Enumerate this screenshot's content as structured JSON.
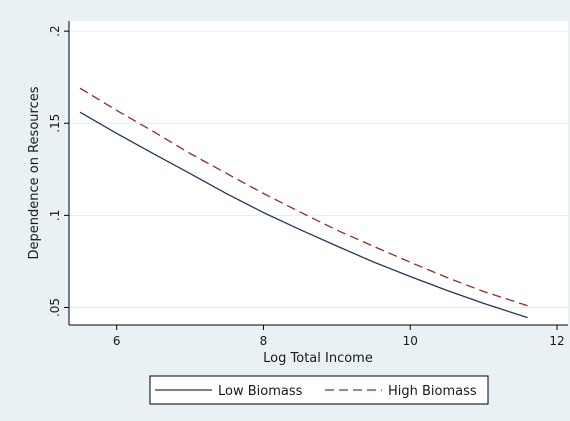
{
  "chart_data": {
    "type": "line",
    "title": "",
    "xlabel": "Log Total Income",
    "ylabel": "Dependence on Resources",
    "xlim": [
      5.35,
      12.15
    ],
    "ylim": [
      0.0405,
      0.2055
    ],
    "xticks": [
      6,
      8,
      10,
      12
    ],
    "xtick_labels": [
      "6",
      "8",
      "10",
      "12"
    ],
    "yticks": [
      0.05,
      0.1,
      0.15,
      0.2
    ],
    "ytick_labels": [
      ".05",
      ".1",
      ".15",
      ".2"
    ],
    "grid": "horizontal",
    "legend_position": "bottom",
    "colors": {
      "outer_background": "#eaf1f4",
      "plot_background": "#ffffff",
      "gridline": "#e6eef2",
      "axis": "#000000",
      "low_biomass": "#23385b",
      "high_biomass": "#8b2e2e"
    },
    "series": [
      {
        "name": "Low Biomass",
        "style": "solid",
        "x": [
          5.5,
          6,
          6.5,
          7,
          7.5,
          8,
          8.5,
          9,
          9.5,
          10,
          10.5,
          11,
          11.6
        ],
        "y": [
          0.156,
          0.1445,
          0.1335,
          0.1227,
          0.1117,
          0.1015,
          0.0922,
          0.0834,
          0.0747,
          0.0668,
          0.0593,
          0.0522,
          0.0445
        ]
      },
      {
        "name": "High Biomass",
        "style": "dashed",
        "x": [
          5.5,
          6,
          6.5,
          7,
          7.5,
          8,
          8.5,
          9,
          9.5,
          10,
          10.5,
          11,
          11.6
        ],
        "y": [
          0.169,
          0.157,
          0.1455,
          0.1336,
          0.1227,
          0.1119,
          0.1018,
          0.092,
          0.0832,
          0.0746,
          0.0663,
          0.0587,
          0.051
        ]
      }
    ]
  }
}
